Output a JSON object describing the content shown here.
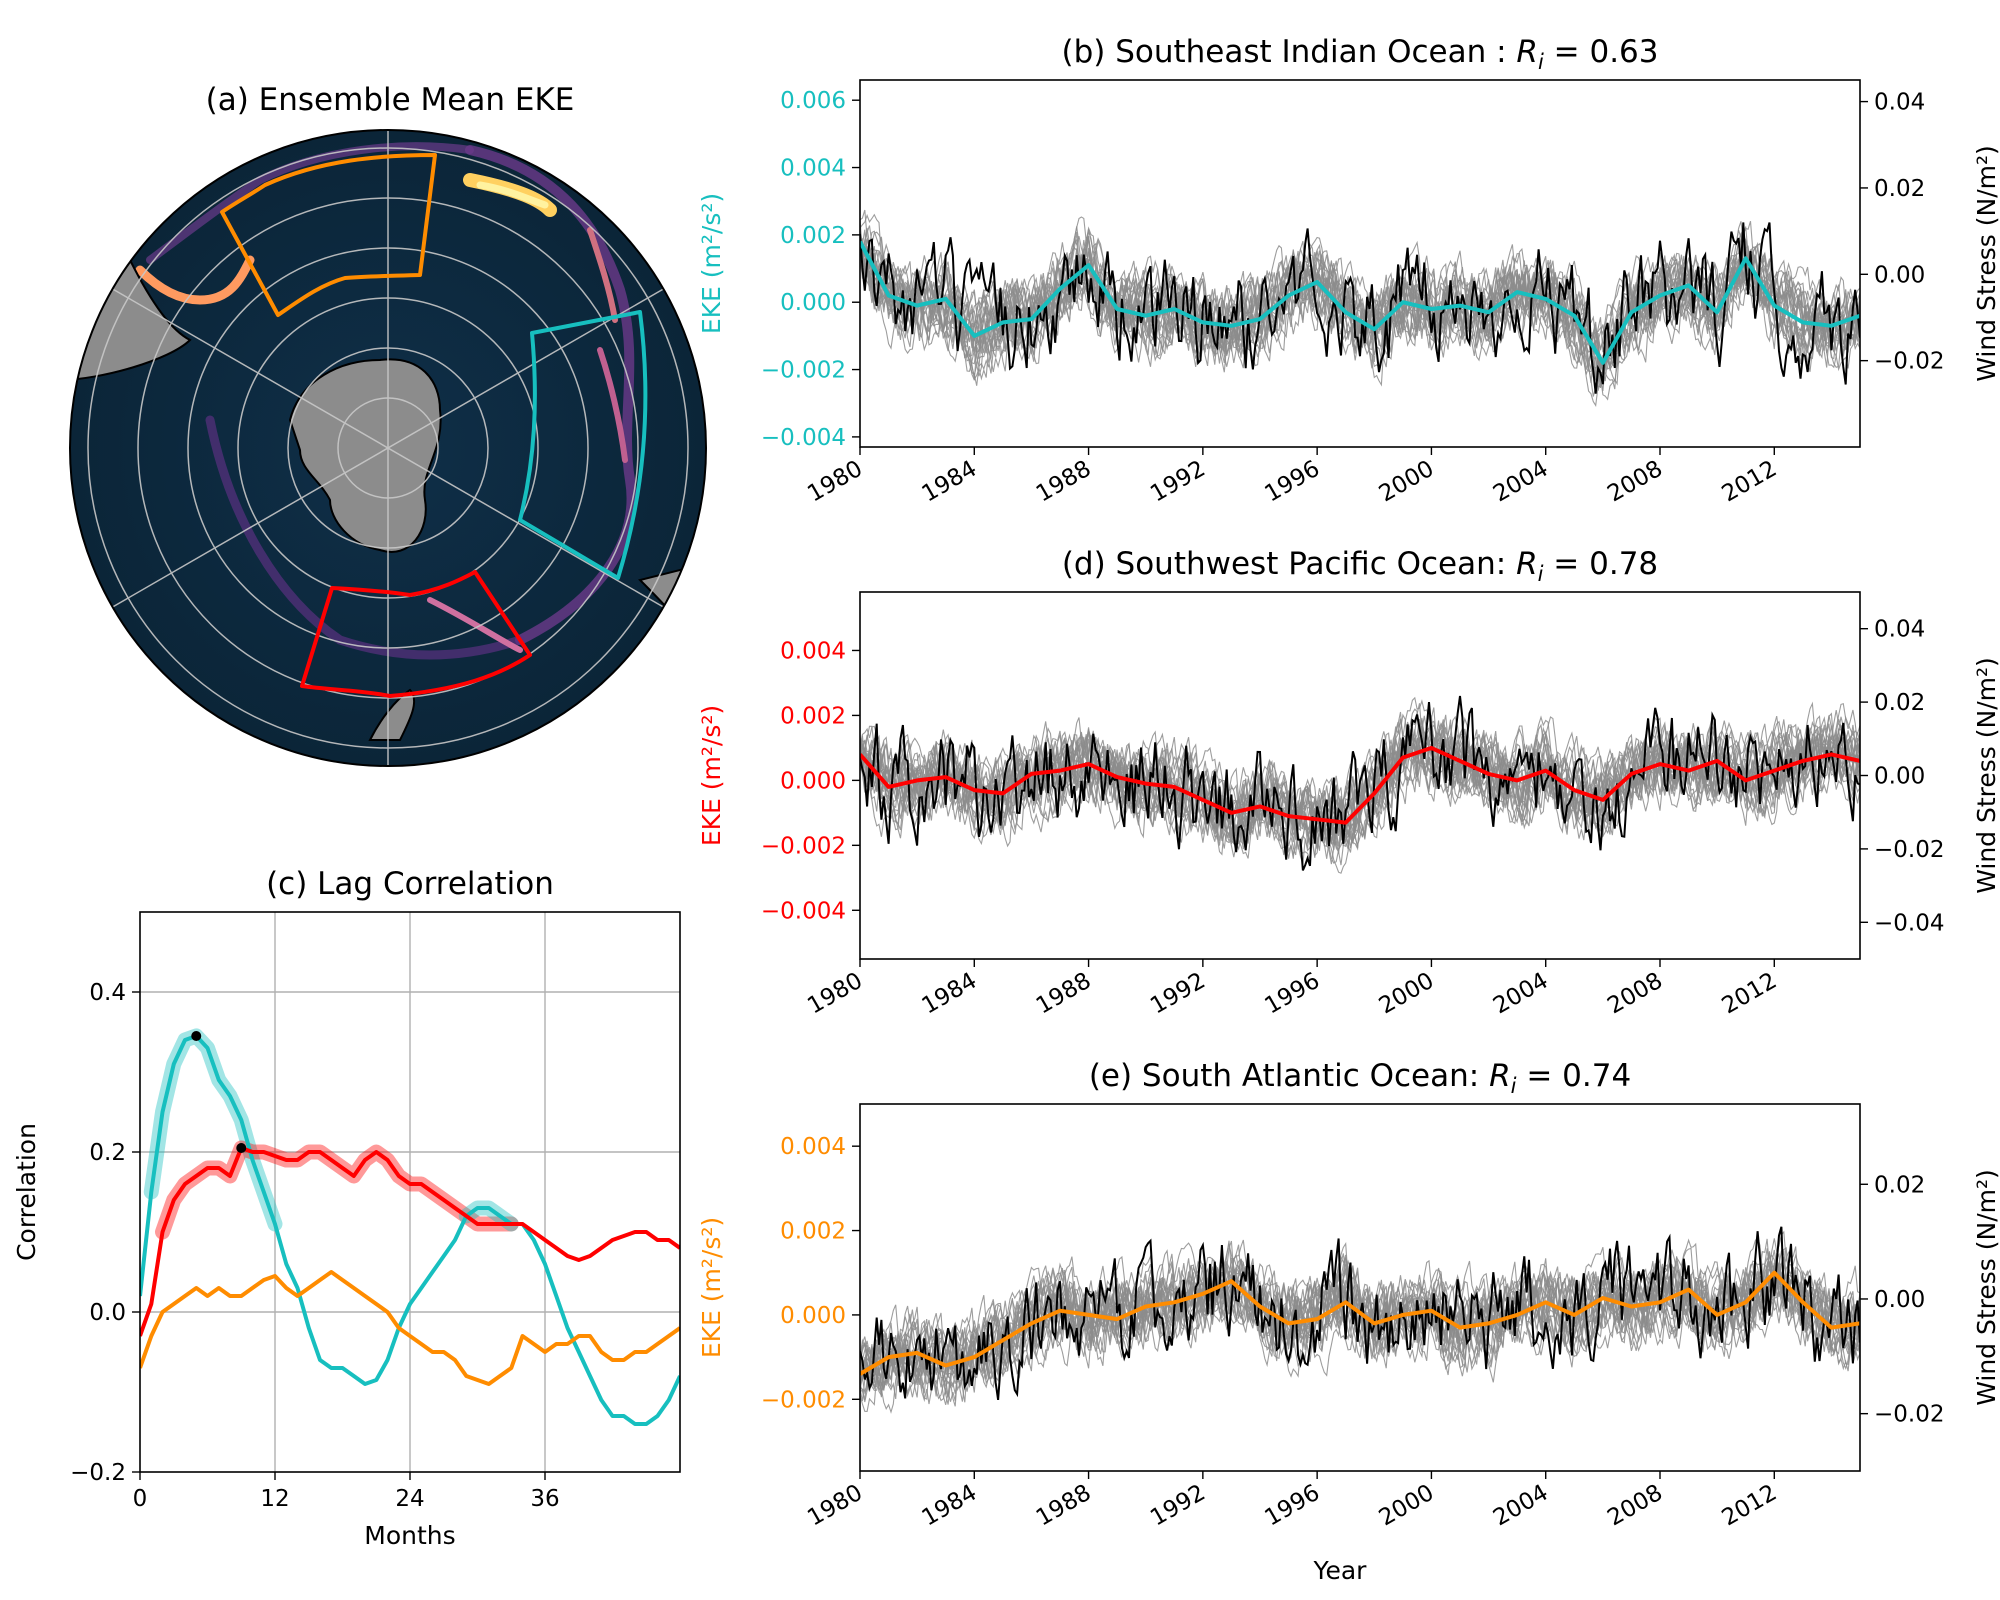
{
  "panels": {
    "a": {
      "title": "(a) Ensemble Mean EKE",
      "colors": {
        "ocean": "#0c2a40",
        "land": "#8c8c8c",
        "grid": "#c8c8c8",
        "indian_box": "#17bfbf",
        "pacific_box": "#ff0000",
        "atlantic_box": "#ff8c00"
      }
    },
    "b": {
      "title_prefix": "(b) Southeast Indian Ocean : ",
      "r_symbol": "R",
      "r_sub": "i",
      "r_value": " = 0.63",
      "ylabel": "EKE (m²/s²)",
      "ylabel_right": "Wind Stress (N/m²)",
      "color": "#17bfbf",
      "ylim": [
        -0.0043,
        0.0066
      ],
      "yticks": [
        "−0.004",
        "−0.002",
        "0.000",
        "0.002",
        "0.004",
        "0.006"
      ],
      "ylim_right": [
        -0.04,
        0.045
      ],
      "yticks_right": [
        "−0.02",
        "0.00",
        "0.02",
        "0.04"
      ]
    },
    "d": {
      "title_prefix": "(d) Southwest Pacific Ocean: ",
      "r_symbol": "R",
      "r_sub": "i",
      "r_value": " = 0.78",
      "ylabel": "EKE (m²/s²)",
      "ylabel_right": "Wind Stress (N/m²)",
      "color": "#ff0000",
      "ylim": [
        -0.0055,
        0.0058
      ],
      "yticks": [
        "−0.004",
        "−0.002",
        "0.000",
        "0.002",
        "0.004"
      ],
      "ylim_right": [
        -0.05,
        0.05
      ],
      "yticks_right": [
        "−0.04",
        "−0.02",
        "0.00",
        "0.02",
        "0.04"
      ]
    },
    "e": {
      "title_prefix": "(e) South Atlantic Ocean: ",
      "r_symbol": "R",
      "r_sub": "i",
      "r_value": " = 0.74",
      "ylabel": "EKE (m²/s²)",
      "ylabel_right": "Wind Stress (N/m²)",
      "color": "#ff8c00",
      "ylim": [
        -0.0037,
        0.005
      ],
      "yticks": [
        "−0.002",
        "0.000",
        "0.002",
        "0.004"
      ],
      "ylim_right": [
        -0.03,
        0.034
      ],
      "yticks_right": [
        "−0.02",
        "0.00",
        "0.02"
      ],
      "xlabel": "Year"
    },
    "c": {
      "title": "(c) Lag Correlation",
      "xlabel": "Months",
      "ylabel": "Correlation",
      "xticks": [
        "0",
        "12",
        "24",
        "36"
      ],
      "yticks": [
        "−0.2",
        "0.0",
        "0.2",
        "0.4"
      ]
    }
  },
  "x_years": [
    "1980",
    "1984",
    "1988",
    "1992",
    "1996",
    "2000",
    "2004",
    "2008",
    "2012"
  ],
  "chart_data": [
    {
      "type": "line",
      "title": "(b) Southeast Indian Ocean : Ri = 0.63",
      "xlim": [
        1980,
        2015
      ],
      "ylim": [
        -0.0043,
        0.0066
      ],
      "series": [
        {
          "name": "",
          "color": "#17bfbf",
          "x": [
            1980,
            1981,
            1982,
            1983,
            1984,
            1985,
            1986,
            1987,
            1988,
            1989,
            1990,
            1991,
            1992,
            1993,
            1994,
            1995,
            1996,
            1997,
            1998,
            1999,
            2000,
            2001,
            2002,
            2003,
            2004,
            2005,
            2006,
            2007,
            2008,
            2009,
            2010,
            2011,
            2012,
            2013,
            2014,
            2015
          ],
          "values": [
            0.0018,
            0.0002,
            -0.0001,
            0.0001,
            -0.001,
            -0.0006,
            -0.0005,
            0.0004,
            0.0011,
            -0.0002,
            -0.0004,
            -0.0002,
            -0.0006,
            -0.0007,
            -0.0005,
            0.0002,
            0.0006,
            -0.0003,
            -0.0008,
            0.0,
            -0.0002,
            -0.0001,
            -0.0003,
            0.0003,
            0.0001,
            -0.0004,
            -0.0018,
            -0.0003,
            0.0002,
            0.0005,
            -0.0003,
            0.0013,
            -0.0001,
            -0.0006,
            -0.0007,
            -0.0004
          ]
        }
      ]
    },
    {
      "type": "line",
      "title": "(d) Southwest Pacific Ocean: Ri = 0.78",
      "xlim": [
        1980,
        2015
      ],
      "ylim": [
        -0.0055,
        0.0058
      ],
      "series": [
        {
          "name": "",
          "color": "#ff0000",
          "x": [
            1980,
            1981,
            1982,
            1983,
            1984,
            1985,
            1986,
            1987,
            1988,
            1989,
            1990,
            1991,
            1992,
            1993,
            1994,
            1995,
            1996,
            1997,
            1998,
            1999,
            2000,
            2001,
            2002,
            2003,
            2004,
            2005,
            2006,
            2007,
            2008,
            2009,
            2010,
            2011,
            2012,
            2013,
            2014,
            2015
          ],
          "values": [
            0.0008,
            -0.0002,
            0.0,
            0.0001,
            -0.0003,
            -0.0004,
            0.0002,
            0.0003,
            0.0005,
            0.0001,
            -0.0001,
            -0.0002,
            -0.0006,
            -0.001,
            -0.0008,
            -0.0011,
            -0.0012,
            -0.0013,
            -0.0004,
            0.0007,
            0.001,
            0.0006,
            0.0002,
            0.0,
            0.0003,
            -0.0003,
            -0.0006,
            0.0002,
            0.0005,
            0.0003,
            0.0006,
            0.0,
            0.0003,
            0.0006,
            0.0008,
            0.0006
          ]
        }
      ]
    },
    {
      "type": "line",
      "title": "(e) South Atlantic Ocean: Ri = 0.74",
      "xlabel": "Year",
      "xlim": [
        1980,
        2015
      ],
      "ylim": [
        -0.0037,
        0.005
      ],
      "series": [
        {
          "name": "",
          "color": "#ff8c00",
          "x": [
            1980,
            1981,
            1982,
            1983,
            1984,
            1985,
            1986,
            1987,
            1988,
            1989,
            1990,
            1991,
            1992,
            1993,
            1994,
            1995,
            1996,
            1997,
            1998,
            1999,
            2000,
            2001,
            2002,
            2003,
            2004,
            2005,
            2006,
            2007,
            2008,
            2009,
            2010,
            2011,
            2012,
            2013,
            2014,
            2015
          ],
          "values": [
            -0.0014,
            -0.001,
            -0.0009,
            -0.0012,
            -0.001,
            -0.0006,
            -0.0002,
            0.0001,
            0.0,
            -0.0001,
            0.0002,
            0.0003,
            0.0005,
            0.0008,
            0.0002,
            -0.0002,
            -0.0001,
            0.0003,
            -0.0002,
            0.0,
            0.0001,
            -0.0003,
            -0.0002,
            0.0,
            0.0003,
            0.0,
            0.0004,
            0.0002,
            0.0003,
            0.0006,
            0.0,
            0.0003,
            0.001,
            0.0003,
            -0.0003,
            -0.0002
          ]
        }
      ]
    },
    {
      "type": "line",
      "title": "(c) Lag Correlation",
      "xlabel": "Months",
      "ylabel": "Correlation",
      "xlim": [
        0,
        48
      ],
      "ylim": [
        -0.2,
        0.5
      ],
      "series": [
        {
          "name": "",
          "color": "#17bfbf",
          "x": [
            0,
            1,
            2,
            3,
            4,
            5,
            6,
            7,
            8,
            9,
            10,
            11,
            12,
            13,
            14,
            15,
            16,
            17,
            18,
            19,
            20,
            21,
            22,
            23,
            24,
            25,
            26,
            27,
            28,
            29,
            30,
            31,
            32,
            33,
            34,
            35,
            36,
            37,
            38,
            39,
            40,
            41,
            42,
            43,
            44,
            45,
            46,
            47,
            48
          ],
          "values": [
            0.02,
            0.15,
            0.25,
            0.31,
            0.34,
            0.345,
            0.33,
            0.29,
            0.27,
            0.24,
            0.19,
            0.15,
            0.11,
            0.06,
            0.03,
            -0.02,
            -0.06,
            -0.07,
            -0.07,
            -0.08,
            -0.09,
            -0.085,
            -0.06,
            -0.02,
            0.01,
            0.03,
            0.05,
            0.07,
            0.09,
            0.12,
            0.13,
            0.13,
            0.12,
            0.11,
            0.11,
            0.09,
            0.06,
            0.02,
            -0.02,
            -0.05,
            -0.08,
            -0.11,
            -0.13,
            -0.13,
            -0.14,
            -0.14,
            -0.13,
            -0.11,
            -0.08
          ]
        },
        {
          "name": "",
          "color": "#ff0000",
          "x": [
            0,
            1,
            2,
            3,
            4,
            5,
            6,
            7,
            8,
            9,
            10,
            11,
            12,
            13,
            14,
            15,
            16,
            17,
            18,
            19,
            20,
            21,
            22,
            23,
            24,
            25,
            26,
            27,
            28,
            29,
            30,
            31,
            32,
            33,
            34,
            35,
            36,
            37,
            38,
            39,
            40,
            41,
            42,
            43,
            44,
            45,
            46,
            47,
            48
          ],
          "values": [
            -0.03,
            0.01,
            0.1,
            0.14,
            0.16,
            0.17,
            0.18,
            0.18,
            0.17,
            0.205,
            0.2,
            0.2,
            0.195,
            0.19,
            0.19,
            0.2,
            0.2,
            0.19,
            0.18,
            0.17,
            0.19,
            0.2,
            0.19,
            0.17,
            0.16,
            0.16,
            0.15,
            0.14,
            0.13,
            0.12,
            0.11,
            0.11,
            0.11,
            0.11,
            0.11,
            0.1,
            0.09,
            0.08,
            0.07,
            0.065,
            0.07,
            0.08,
            0.09,
            0.095,
            0.1,
            0.1,
            0.09,
            0.09,
            0.08
          ]
        },
        {
          "name": "",
          "color": "#ff8c00",
          "x": [
            0,
            1,
            2,
            3,
            4,
            5,
            6,
            7,
            8,
            9,
            10,
            11,
            12,
            13,
            14,
            15,
            16,
            17,
            18,
            19,
            20,
            21,
            22,
            23,
            24,
            25,
            26,
            27,
            28,
            29,
            30,
            31,
            32,
            33,
            34,
            35,
            36,
            37,
            38,
            39,
            40,
            41,
            42,
            43,
            44,
            45,
            46,
            47,
            48
          ],
          "values": [
            -0.07,
            -0.03,
            0.0,
            0.01,
            0.02,
            0.03,
            0.02,
            0.03,
            0.02,
            0.02,
            0.03,
            0.04,
            0.045,
            0.03,
            0.02,
            0.03,
            0.04,
            0.05,
            0.04,
            0.03,
            0.02,
            0.01,
            0.0,
            -0.02,
            -0.03,
            -0.04,
            -0.05,
            -0.05,
            -0.06,
            -0.08,
            -0.085,
            -0.09,
            -0.08,
            -0.07,
            -0.03,
            -0.04,
            -0.05,
            -0.04,
            -0.04,
            -0.03,
            -0.03,
            -0.05,
            -0.06,
            -0.06,
            -0.05,
            -0.05,
            -0.04,
            -0.03,
            -0.02
          ]
        }
      ],
      "markers": [
        {
          "x": 5,
          "y": 0.345
        },
        {
          "x": 9,
          "y": 0.205
        }
      ]
    }
  ]
}
